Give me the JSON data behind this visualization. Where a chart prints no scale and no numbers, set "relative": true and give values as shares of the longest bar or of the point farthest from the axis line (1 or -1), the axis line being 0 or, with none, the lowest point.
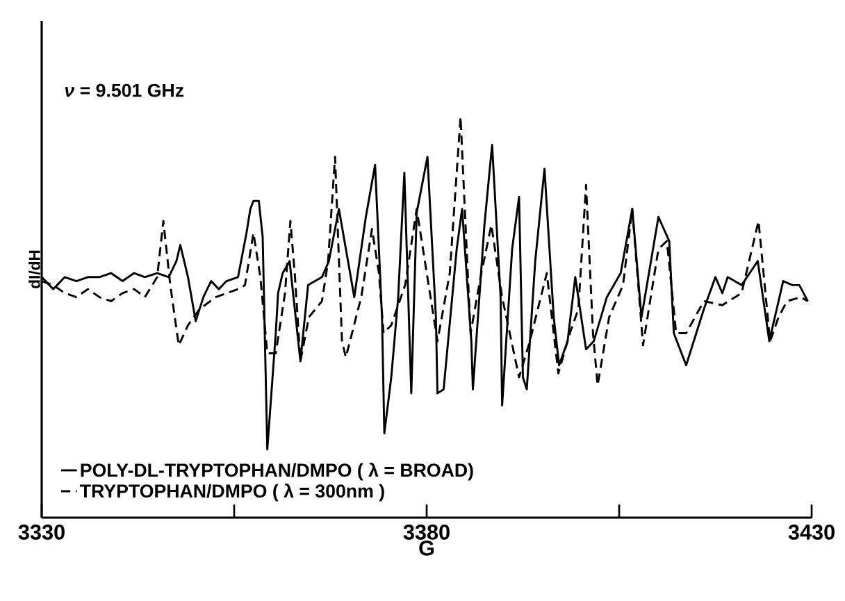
{
  "chart_data": {
    "type": "line",
    "relative": true,
    "xlabel": "G",
    "ylabel": "dI/dH",
    "xlim": [
      3330,
      3430
    ],
    "xticks": [
      3330,
      3380,
      3430
    ],
    "legend": "bottom left",
    "annotations": [
      "*ν* = 9.501 GHz"
    ],
    "series": [
      {
        "name": "POLY-DL-TRYPTOPHAN/DMPO ( λ = BROAD)",
        "color": "#000000",
        "line_style": "solid",
        "x": [
          3330.0,
          3331.5,
          3333.0,
          3334.5,
          3336.0,
          3337.5,
          3339.0,
          3340.5,
          3342.0,
          3343.4,
          3345.0,
          3346.5,
          3347.5,
          3348.0,
          3349.0,
          3350.0,
          3351.0,
          3352.0,
          3353.0,
          3354.0,
          3355.5,
          3356.6,
          3357.1,
          3357.5,
          3358.2,
          3358.7,
          3359.3,
          3360.4,
          3360.7,
          3361.3,
          3362.2,
          3363.6,
          3364.6,
          3366.4,
          3367.3,
          3368.6,
          3370.6,
          3372.1,
          3373.3,
          3374.2,
          3374.5,
          3375.4,
          3376.3,
          3377.1,
          3378.0,
          3378.7,
          3380.1,
          3381.2,
          3381.4,
          3382.2,
          3383.9,
          3384.6,
          3385.8,
          3386.0,
          3387.5,
          3388.5,
          3389.6,
          3389.8,
          3391.1,
          3392.0,
          3392.5,
          3393.0,
          3394.1,
          3395.3,
          3396.5,
          3397.2,
          3398.3,
          3399.3,
          3400.7,
          3401.7,
          3403.4,
          3405.2,
          3406.7,
          3407.9,
          3410.1,
          3411.5,
          3412.1,
          3413.7,
          3416.0,
          3417.5,
          3418.4,
          3419.1,
          3420.9,
          3423.0,
          3424.5,
          3426.3,
          3427.5,
          3428.4,
          3429.5
        ],
        "values": [
          0.6,
          0.57,
          0.6,
          0.59,
          0.6,
          0.6,
          0.61,
          0.59,
          0.61,
          0.6,
          0.61,
          0.6,
          0.64,
          0.68,
          0.6,
          0.49,
          0.55,
          0.59,
          0.57,
          0.59,
          0.6,
          0.71,
          0.77,
          0.79,
          0.79,
          0.7,
          0.17,
          0.46,
          0.56,
          0.61,
          0.64,
          0.39,
          0.58,
          0.6,
          0.64,
          0.77,
          0.55,
          0.75,
          0.88,
          0.5,
          0.21,
          0.35,
          0.55,
          0.86,
          0.31,
          0.76,
          0.9,
          0.5,
          0.31,
          0.32,
          0.67,
          0.77,
          0.44,
          0.32,
          0.73,
          0.93,
          0.55,
          0.28,
          0.67,
          0.8,
          0.35,
          0.32,
          0.64,
          0.87,
          0.5,
          0.38,
          0.44,
          0.6,
          0.42,
          0.44,
          0.55,
          0.61,
          0.77,
          0.5,
          0.75,
          0.69,
          0.46,
          0.38,
          0.52,
          0.6,
          0.56,
          0.6,
          0.58,
          0.64,
          0.44,
          0.59,
          0.58,
          0.58,
          0.54
        ]
      },
      {
        "name": "TRYPTOPHAN/DMPO ( λ = 300nm )",
        "color": "#000000",
        "line_style": "dashed",
        "x": [
          3330.0,
          3331.5,
          3333.0,
          3334.5,
          3336.0,
          3337.5,
          3339.0,
          3340.5,
          3342.0,
          3343.4,
          3345.0,
          3345.8,
          3346.7,
          3347.8,
          3349.0,
          3350.5,
          3352.6,
          3355.5,
          3356.4,
          3357.5,
          3358.4,
          3359.3,
          3360.4,
          3361.6,
          3362.3,
          3362.9,
          3363.6,
          3364.7,
          3366.4,
          3367.2,
          3368.1,
          3369.0,
          3369.5,
          3371.5,
          3372.9,
          3373.8,
          3374.4,
          3375.4,
          3377.2,
          3378.7,
          3379.6,
          3381.4,
          3383.0,
          3384.4,
          3384.9,
          3385.7,
          3387.1,
          3388.4,
          3389.8,
          3392.0,
          3393.4,
          3395.6,
          3397.1,
          3398.6,
          3399.7,
          3400.7,
          3401.6,
          3402.2,
          3403.7,
          3405.5,
          3406.7,
          3408.1,
          3410.1,
          3411.2,
          3412.4,
          3413.7,
          3416.0,
          3418.4,
          3420.9,
          3423.1,
          3424.6,
          3425.7,
          3426.8,
          3428.6,
          3429.5
        ],
        "values": [
          0.59,
          0.58,
          0.56,
          0.55,
          0.57,
          0.55,
          0.54,
          0.56,
          0.57,
          0.55,
          0.6,
          0.74,
          0.58,
          0.43,
          0.48,
          0.52,
          0.55,
          0.57,
          0.58,
          0.71,
          0.6,
          0.41,
          0.41,
          0.56,
          0.74,
          0.6,
          0.39,
          0.5,
          0.54,
          0.64,
          0.9,
          0.44,
          0.4,
          0.55,
          0.72,
          0.61,
          0.46,
          0.48,
          0.58,
          0.77,
          0.66,
          0.44,
          0.61,
          1.0,
          0.79,
          0.46,
          0.61,
          0.73,
          0.55,
          0.35,
          0.44,
          0.61,
          0.36,
          0.46,
          0.52,
          0.83,
          0.46,
          0.33,
          0.5,
          0.58,
          0.77,
          0.43,
          0.67,
          0.69,
          0.46,
          0.46,
          0.54,
          0.53,
          0.56,
          0.74,
          0.44,
          0.5,
          0.54,
          0.55,
          0.54
        ]
      }
    ]
  }
}
